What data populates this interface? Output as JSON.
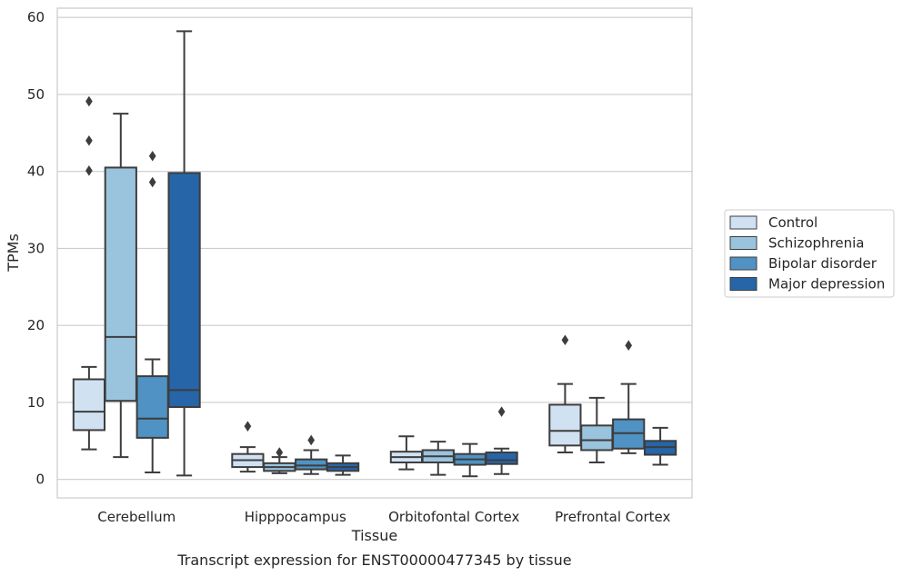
{
  "chart_data": {
    "type": "box",
    "title": "Transcript expression for ENST00000477345 by tissue",
    "xlabel": "Tissue",
    "ylabel": "TPMs",
    "ylim": [
      -2.4,
      61.2
    ],
    "yticks": [
      0,
      10,
      20,
      30,
      40,
      50,
      60
    ],
    "grid": "horizontal",
    "legend_position": "right",
    "categories": [
      "Cerebellum",
      "Hipppocampus",
      "Orbitofontal Cortex",
      "Prefrontal Cortex"
    ],
    "series": [
      {
        "name": "Control",
        "color": "#d0e1f2",
        "boxes": [
          {
            "whisker_low": 3.9,
            "q1": 6.4,
            "median": 8.8,
            "q3": 13.0,
            "whisker_high": 14.6,
            "outliers": [
              49.1,
              44.0,
              40.1
            ]
          },
          {
            "whisker_low": 1.0,
            "q1": 1.6,
            "median": 2.5,
            "q3": 3.3,
            "whisker_high": 4.2,
            "outliers": [
              6.9
            ]
          },
          {
            "whisker_low": 1.3,
            "q1": 2.2,
            "median": 2.9,
            "q3": 3.6,
            "whisker_high": 5.6,
            "outliers": []
          },
          {
            "whisker_low": 3.5,
            "q1": 4.4,
            "median": 6.3,
            "q3": 9.7,
            "whisker_high": 12.4,
            "outliers": [
              18.1
            ]
          }
        ]
      },
      {
        "name": "Schizophrenia",
        "color": "#9ac3de",
        "boxes": [
          {
            "whisker_low": 2.9,
            "q1": 10.2,
            "median": 18.5,
            "q3": 40.5,
            "whisker_high": 47.5,
            "outliers": []
          },
          {
            "whisker_low": 0.8,
            "q1": 1.1,
            "median": 1.6,
            "q3": 2.1,
            "whisker_high": 2.9,
            "outliers": [
              3.5
            ]
          },
          {
            "whisker_low": 0.6,
            "q1": 2.2,
            "median": 3.0,
            "q3": 3.8,
            "whisker_high": 4.9,
            "outliers": []
          },
          {
            "whisker_low": 2.2,
            "q1": 3.8,
            "median": 5.1,
            "q3": 7.0,
            "whisker_high": 10.6,
            "outliers": []
          }
        ]
      },
      {
        "name": "Bipolar disorder",
        "color": "#4f92c3",
        "boxes": [
          {
            "whisker_low": 0.9,
            "q1": 5.4,
            "median": 7.9,
            "q3": 13.4,
            "whisker_high": 15.6,
            "outliers": [
              42.0,
              38.6
            ]
          },
          {
            "whisker_low": 0.7,
            "q1": 1.3,
            "median": 1.8,
            "q3": 2.6,
            "whisker_high": 3.8,
            "outliers": [
              5.1
            ]
          },
          {
            "whisker_low": 0.4,
            "q1": 1.9,
            "median": 2.6,
            "q3": 3.3,
            "whisker_high": 4.6,
            "outliers": []
          },
          {
            "whisker_low": 3.4,
            "q1": 4.0,
            "median": 6.0,
            "q3": 7.8,
            "whisker_high": 12.4,
            "outliers": [
              17.4
            ]
          }
        ]
      },
      {
        "name": "Major depression",
        "color": "#2665a8",
        "boxes": [
          {
            "whisker_low": 0.5,
            "q1": 9.4,
            "median": 11.6,
            "q3": 39.8,
            "whisker_high": 58.2,
            "outliers": []
          },
          {
            "whisker_low": 0.6,
            "q1": 1.1,
            "median": 1.6,
            "q3": 2.1,
            "whisker_high": 3.1,
            "outliers": []
          },
          {
            "whisker_low": 0.7,
            "q1": 2.0,
            "median": 2.5,
            "q3": 3.5,
            "whisker_high": 4.0,
            "outliers": [
              8.8
            ]
          },
          {
            "whisker_low": 1.9,
            "q1": 3.2,
            "median": 4.2,
            "q3": 5.0,
            "whisker_high": 6.7,
            "outliers": []
          }
        ]
      }
    ]
  }
}
